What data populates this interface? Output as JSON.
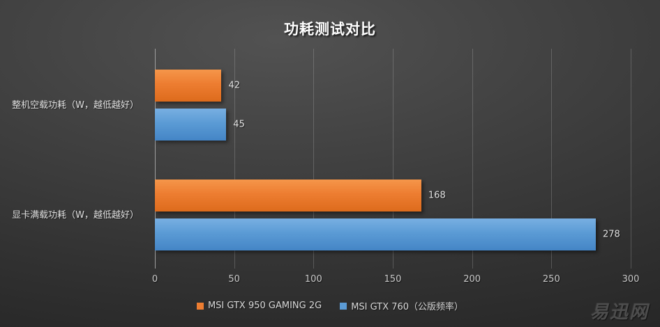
{
  "chart_data": {
    "type": "bar",
    "orientation": "horizontal",
    "title": "功耗测试对比",
    "categories": [
      "整机空载功耗（W，越低越好）",
      "显卡满载功耗（W，越低越好）"
    ],
    "series": [
      {
        "name": "MSI GTX 950 GAMING 2G",
        "color": "#ED7D31",
        "color_light": "#F5964A",
        "color_dark": "#DD6B1C",
        "values": [
          42,
          168
        ]
      },
      {
        "name": "MSI GTX 760（公版频率）",
        "color": "#5B9BD5",
        "color_light": "#78AFE2",
        "color_dark": "#4485C6",
        "values": [
          45,
          278
        ]
      }
    ],
    "xlim": [
      0,
      300
    ],
    "xticks": [
      0,
      50,
      100,
      150,
      200,
      250,
      300
    ],
    "grid": "vertical",
    "legend_position": "bottom",
    "data_labels": true
  },
  "watermark": "易迅网",
  "colors": {
    "background_center": "#525252",
    "background_edge": "#232323",
    "title_text": "#ffffff",
    "axis_text": "#c9c9c9",
    "label_text": "#e2e2e2",
    "gridline": "#8a8a8a",
    "watermark_text": "#4d4d4d"
  }
}
